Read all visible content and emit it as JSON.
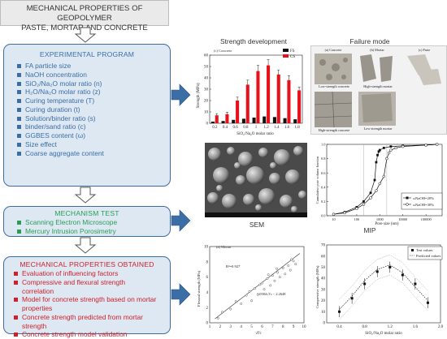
{
  "header": {
    "title_line1": "MECHANICAL PROPERTIES OF GEOPOLYMER",
    "title_line2": "PASTE, MORTAR AND CONCRETE"
  },
  "program": {
    "title": "EXPERIMENTAL PROGRAM",
    "items": [
      "FA particle size",
      "NaOH concentration",
      "SiO₂/Na₂O molar ratio (n)",
      "H₂O/Na₂O molar ratio (z)",
      "Curing temperature (T)",
      " Curing duration (t)",
      "Solution/binder ratio (s)",
      "binder/sand ratio (c)",
      "GGBES content (ω)",
      "Size effect",
      "Coarse aggregate content"
    ]
  },
  "mechanism": {
    "title": "MECHANISM TEST",
    "items": [
      "Scanning Electron Microscope",
      "Mercury Intrusion Porosimetry"
    ]
  },
  "properties": {
    "title": "MECHANICAL PROPERTIES OBTAINED",
    "items": [
      [
        "Evaluation of influencing factors"
      ],
      [
        "Compressive and flexural strength",
        "correlation"
      ],
      [
        "Model for concrete strength based on mortar",
        "properties"
      ],
      [
        "Concrete strength predicted from mortar",
        "strength"
      ],
      [
        "Concrete strength model validation"
      ]
    ]
  },
  "sections": {
    "strength": "Strength development",
    "failure": "Failure mode",
    "sem": "SEM",
    "mip": "MIP"
  },
  "failure_mode": {
    "col_a": "(a) Concrete",
    "col_b": "(b) Mortar",
    "col_c": "(c) Paste",
    "low_concrete": "Low-strength concrete",
    "high_concrete": "High-strength concrete",
    "high_mortar": "High-strength mortar",
    "low_mortar": "Low-strength mortar"
  },
  "colors": {
    "fs": "#111111",
    "cs": "#e8101a",
    "box_fill": "#dde8f3",
    "box_border": "#3f6d9b",
    "arrow": "#3a6ea5"
  },
  "chart_data": [
    {
      "type": "bar",
      "panel_label": "(c) Concrete",
      "categories": [
        "0.2",
        "0.4",
        "0.6",
        "0.8",
        "1",
        "1.2",
        "1.4",
        "1.6",
        "1.8"
      ],
      "series": [
        {
          "name": "FS",
          "values": [
            1.5,
            2,
            3,
            4,
            5,
            6,
            5.5,
            4.5,
            3.5
          ]
        },
        {
          "name": "CS",
          "values": [
            7,
            8,
            20,
            34,
            46,
            51,
            43,
            38,
            29
          ]
        }
      ],
      "errors": [
        1.5,
        1.8,
        3,
        4,
        5,
        5,
        4,
        4,
        3
      ],
      "xlabel": "SiO₂/Na₂O molar ratio",
      "ylabel": "Strength (MPa)",
      "ylim": [
        0,
        60
      ],
      "yticks": [
        0,
        10,
        20,
        30,
        40,
        50,
        60
      ]
    },
    {
      "type": "line",
      "xlabel": "Pore size  (nm)",
      "ylabel": "Cumulative pore volume fraction",
      "xticks": [
        "10",
        "100",
        "1000",
        "10000",
        "100000"
      ],
      "x_scale": "log",
      "yticks": [
        "0.0",
        "0.2",
        "0.4",
        "0.6",
        "0.8",
        "1.0"
      ],
      "ylim": [
        0,
        1
      ],
      "series": [
        {
          "name": "ωNaOH=20%",
          "x": [
            10,
            30,
            100,
            200,
            400,
            600,
            700,
            800,
            900,
            1000,
            1500,
            3000,
            10000,
            100000,
            300000
          ],
          "y": [
            0.02,
            0.05,
            0.12,
            0.2,
            0.32,
            0.5,
            0.75,
            0.85,
            0.9,
            0.92,
            0.95,
            0.97,
            0.98,
            0.99,
            1.0
          ]
        },
        {
          "name": "ωNaOH=30%",
          "x": [
            10,
            30,
            100,
            200,
            400,
            700,
            1000,
            1500,
            2000,
            2500,
            3000,
            5000,
            10000,
            100000,
            300000
          ],
          "y": [
            0.02,
            0.04,
            0.1,
            0.16,
            0.25,
            0.35,
            0.45,
            0.55,
            0.8,
            0.88,
            0.92,
            0.95,
            0.97,
            0.99,
            1.0
          ]
        }
      ],
      "legend": "bottom-right"
    },
    {
      "type": "scatter",
      "panel_label": "(a) Mortar",
      "xlabel": "√f'c",
      "ylabel": "Flexural strength (MPa)",
      "xlim": [
        1,
        10
      ],
      "ylim": [
        0,
        10
      ],
      "xticks": [
        "1",
        "2",
        "3",
        "4",
        "5",
        "6",
        "7",
        "8",
        "9",
        "10"
      ],
      "yticks": [
        "0",
        "2",
        "4",
        "6",
        "8",
        "10"
      ],
      "annotations": [
        "R²=0.927",
        "1.0584√f'c − 2.2648"
      ],
      "points": [
        [
          1.8,
          0.6
        ],
        [
          2.2,
          1.4
        ],
        [
          3,
          1.8
        ],
        [
          3.5,
          2.8
        ],
        [
          4,
          2.5
        ],
        [
          4.5,
          3.6
        ],
        [
          5,
          2.9
        ],
        [
          5.3,
          4.5
        ],
        [
          5.6,
          3.7
        ],
        [
          6,
          5.2
        ],
        [
          6.2,
          4.4
        ],
        [
          6.5,
          5.8
        ],
        [
          6.8,
          4.9
        ],
        [
          7,
          6.2
        ],
        [
          7.2,
          5.5
        ],
        [
          7.5,
          6.6
        ],
        [
          7.7,
          6.0
        ],
        [
          8,
          7.2
        ],
        [
          8.2,
          6.4
        ],
        [
          8.5,
          7.5
        ],
        [
          8.7,
          6.9
        ],
        [
          9,
          8.1
        ],
        [
          7.4,
          7.1
        ],
        [
          8.8,
          8.3
        ],
        [
          6.6,
          6.3
        ],
        [
          5.8,
          5.0
        ],
        [
          4.8,
          4.1
        ],
        [
          9.2,
          7.7
        ]
      ],
      "fit": {
        "slope": 1.0584,
        "intercept": -2.2648
      }
    },
    {
      "type": "scatter",
      "xlabel": "SiO₂/Na₂O molar ratio",
      "ylabel": "Compressive strength (MPa)",
      "xlim": [
        0.2,
        2.0
      ],
      "ylim": [
        0,
        70
      ],
      "xticks": [
        "0.4",
        "0.8",
        "1.2",
        "1.6",
        "2.0"
      ],
      "yticks": [
        "0",
        "10",
        "20",
        "30",
        "40",
        "50",
        "60",
        "70"
      ],
      "series": [
        {
          "name": "Test values",
          "x": [
            0.4,
            0.6,
            0.8,
            1.0,
            1.2,
            1.4,
            1.6,
            1.8
          ],
          "y": [
            10,
            22,
            35,
            46,
            50,
            43,
            35,
            18
          ]
        },
        {
          "name": "Predicted values",
          "x": [
            0.4,
            0.6,
            0.8,
            1.0,
            1.2,
            1.4,
            1.6,
            1.8
          ],
          "y": [
            12,
            24,
            38,
            48,
            52,
            45,
            32,
            20
          ]
        }
      ],
      "legend": "top-right"
    }
  ]
}
